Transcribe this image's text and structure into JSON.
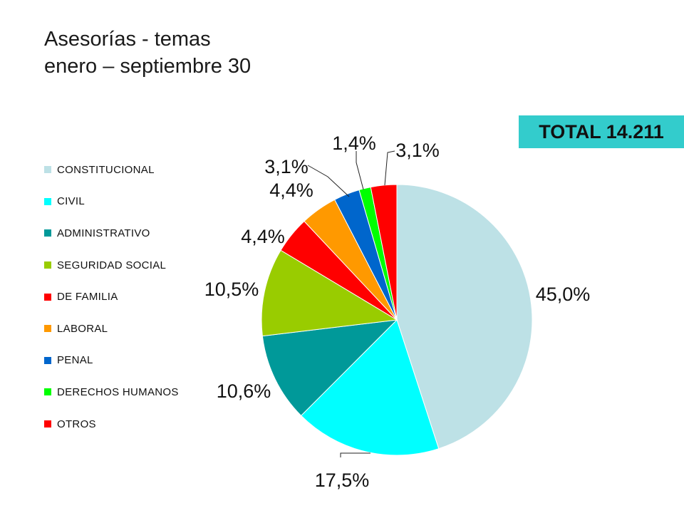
{
  "title_lines": [
    "Asesorías -  temas",
    "enero – septiembre 30"
  ],
  "total": "TOTAL 14.211",
  "chart_data": {
    "type": "pie",
    "title": "Asesorías -  temas enero – septiembre 30",
    "legend_position": "left",
    "categories": [
      "CONSTITUCIONAL",
      "CIVIL",
      "ADMINISTRATIVO",
      "SEGURIDAD SOCIAL",
      "DE FAMILIA",
      "LABORAL",
      "PENAL",
      "DERECHOS HUMANOS",
      "OTROS"
    ],
    "values": [
      45.0,
      17.5,
      10.6,
      10.5,
      4.4,
      4.4,
      3.1,
      1.4,
      3.1
    ],
    "labels": [
      "45,0%",
      "17,5%",
      "10,6%",
      "10,5%",
      "4,4%",
      "4,4%",
      "3,1%",
      "1,4%",
      "3,1%"
    ],
    "colors": [
      "#BDE1E6",
      "#00FFFF",
      "#009999",
      "#99CC00",
      "#FF0000",
      "#FF9900",
      "#0066CC",
      "#00FF00",
      "#FF0000"
    ]
  }
}
